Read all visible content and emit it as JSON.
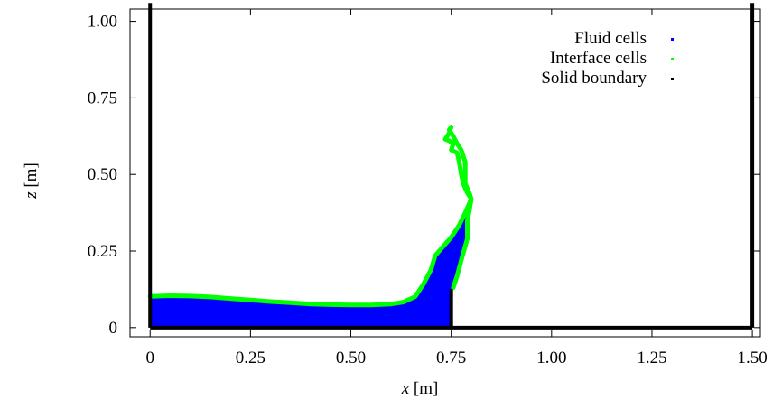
{
  "chart_data": {
    "type": "area",
    "title": "",
    "xlabel_var": "x",
    "xlabel_unit": " [m]",
    "ylabel_var": "z",
    "ylabel_unit": " [m]",
    "xlim": [
      -0.05,
      1.52
    ],
    "ylim": [
      -0.03,
      1.04
    ],
    "xticks": [
      0,
      0.25,
      0.5,
      0.75,
      1.0,
      1.25,
      1.5
    ],
    "xtick_labels": [
      "0",
      "0.25",
      "0.50",
      "0.75",
      "1.00",
      "1.25",
      "1.50"
    ],
    "yticks": [
      0,
      0.25,
      0.5,
      0.75,
      1.0
    ],
    "ytick_labels": [
      "0",
      "0.25",
      "0.50",
      "0.75",
      "1.00"
    ],
    "legend_position": "top-right",
    "series": [
      {
        "name": "Fluid cells",
        "color": "#0000ff",
        "kind": "fluid-region",
        "points": [
          [
            0,
            0
          ],
          [
            0,
            0.1
          ],
          [
            0.05,
            0.103
          ],
          [
            0.1,
            0.102
          ],
          [
            0.15,
            0.099
          ],
          [
            0.2,
            0.094
          ],
          [
            0.25,
            0.089
          ],
          [
            0.3,
            0.084
          ],
          [
            0.35,
            0.08
          ],
          [
            0.4,
            0.076
          ],
          [
            0.45,
            0.074
          ],
          [
            0.5,
            0.073
          ],
          [
            0.55,
            0.073
          ],
          [
            0.6,
            0.076
          ],
          [
            0.63,
            0.082
          ],
          [
            0.66,
            0.1
          ],
          [
            0.68,
            0.14
          ],
          [
            0.7,
            0.19
          ],
          [
            0.71,
            0.23
          ],
          [
            0.73,
            0.26
          ],
          [
            0.75,
            0.29
          ],
          [
            0.77,
            0.33
          ],
          [
            0.79,
            0.37
          ],
          [
            0.795,
            0.41
          ],
          [
            0.79,
            0.35
          ],
          [
            0.785,
            0.29
          ],
          [
            0.77,
            0.22
          ],
          [
            0.76,
            0.17
          ],
          [
            0.75,
            0.12
          ],
          [
            0.75,
            0
          ]
        ]
      },
      {
        "name": "Interface cells",
        "color": "#00ff00",
        "kind": "interface-curve",
        "points": [
          [
            0,
            0.102
          ],
          [
            0.05,
            0.104
          ],
          [
            0.1,
            0.103
          ],
          [
            0.15,
            0.1
          ],
          [
            0.2,
            0.095
          ],
          [
            0.25,
            0.09
          ],
          [
            0.3,
            0.085
          ],
          [
            0.35,
            0.081
          ],
          [
            0.4,
            0.077
          ],
          [
            0.45,
            0.075
          ],
          [
            0.5,
            0.074
          ],
          [
            0.55,
            0.074
          ],
          [
            0.6,
            0.077
          ],
          [
            0.63,
            0.083
          ],
          [
            0.66,
            0.101
          ],
          [
            0.68,
            0.14
          ],
          [
            0.7,
            0.19
          ],
          [
            0.71,
            0.235
          ],
          [
            0.73,
            0.265
          ],
          [
            0.75,
            0.295
          ],
          [
            0.77,
            0.335
          ],
          [
            0.785,
            0.375
          ],
          [
            0.8,
            0.42
          ],
          [
            0.79,
            0.44
          ],
          [
            0.78,
            0.47
          ],
          [
            0.775,
            0.5
          ],
          [
            0.77,
            0.54
          ],
          [
            0.765,
            0.57
          ],
          [
            0.75,
            0.58
          ],
          [
            0.755,
            0.6
          ],
          [
            0.745,
            0.61
          ],
          [
            0.735,
            0.615
          ],
          [
            0.745,
            0.635
          ],
          [
            0.75,
            0.655
          ],
          [
            0.745,
            0.645
          ],
          [
            0.755,
            0.625
          ],
          [
            0.765,
            0.6
          ],
          [
            0.775,
            0.58
          ],
          [
            0.78,
            0.56
          ],
          [
            0.785,
            0.54
          ],
          [
            0.785,
            0.5
          ],
          [
            0.785,
            0.47
          ],
          [
            0.795,
            0.44
          ],
          [
            0.8,
            0.42
          ],
          [
            0.795,
            0.38
          ],
          [
            0.79,
            0.35
          ],
          [
            0.79,
            0.29
          ],
          [
            0.775,
            0.22
          ],
          [
            0.765,
            0.17
          ],
          [
            0.755,
            0.13
          ]
        ]
      },
      {
        "name": "Solid boundary",
        "color": "#000000",
        "kind": "solid-walls",
        "segments": [
          [
            [
              0,
              0
            ],
            [
              0,
              1.06
            ]
          ],
          [
            [
              1.5,
              0
            ],
            [
              1.5,
              1.06
            ]
          ],
          [
            [
              0,
              0
            ],
            [
              1.5,
              0
            ]
          ],
          [
            [
              0.75,
              0
            ],
            [
              0.75,
              0.125
            ]
          ]
        ]
      }
    ]
  }
}
